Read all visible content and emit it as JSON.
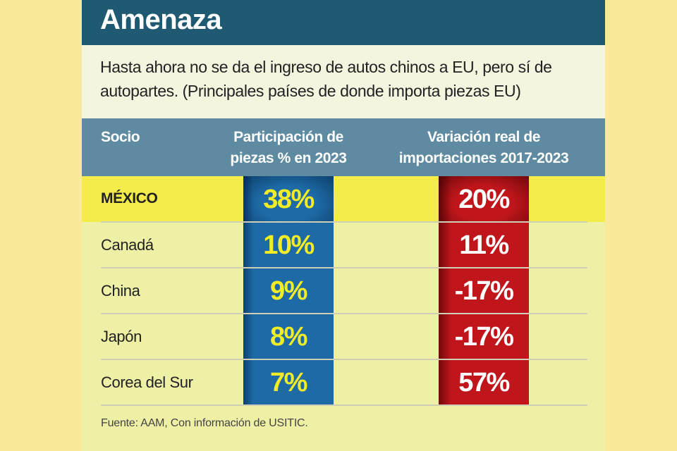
{
  "title": "Amenaza",
  "subtitle": "Hasta ahora no se da el ingreso de autos chinos a EU, pero sí de autopartes. (Principales países de donde importa piezas EU)",
  "source": "Fuente: AAM, Con información de USITIC.",
  "colors": {
    "title_bar": "#205a72",
    "header": "#5e8ba1",
    "highlight_row": "#f4ec4a",
    "share_column": "#1d6aa6",
    "share_text": "#f2ec27",
    "variation_column": "#c0161b",
    "variation_text": "#ffffff"
  },
  "chart_data": {
    "type": "table",
    "title": "Amenaza",
    "columns": [
      "Socio",
      "Participación de piezas % en 2023",
      "Variación real de importaciones 2017-2023"
    ],
    "header_lines": {
      "partner": "Socio",
      "share_1": "Participación de",
      "share_2": "piezas % en 2023",
      "var_1": "Variación real de",
      "var_2": "importaciones 2017-2023"
    },
    "rows": [
      {
        "partner": "MÉXICO",
        "share": "38%",
        "variation": "20%",
        "share_value": 38,
        "variation_value": 20,
        "highlight": true
      },
      {
        "partner": "Canadá",
        "share": "10%",
        "variation": "11%",
        "share_value": 10,
        "variation_value": 11,
        "highlight": false
      },
      {
        "partner": "China",
        "share": "9%",
        "variation": "-17%",
        "share_value": 9,
        "variation_value": -17,
        "highlight": false
      },
      {
        "partner": "Japón",
        "share": "8%",
        "variation": "-17%",
        "share_value": 8,
        "variation_value": -17,
        "highlight": false
      },
      {
        "partner": "Corea del Sur",
        "share": "7%",
        "variation": "57%",
        "share_value": 7,
        "variation_value": 57,
        "highlight": false
      }
    ],
    "units": "%"
  }
}
